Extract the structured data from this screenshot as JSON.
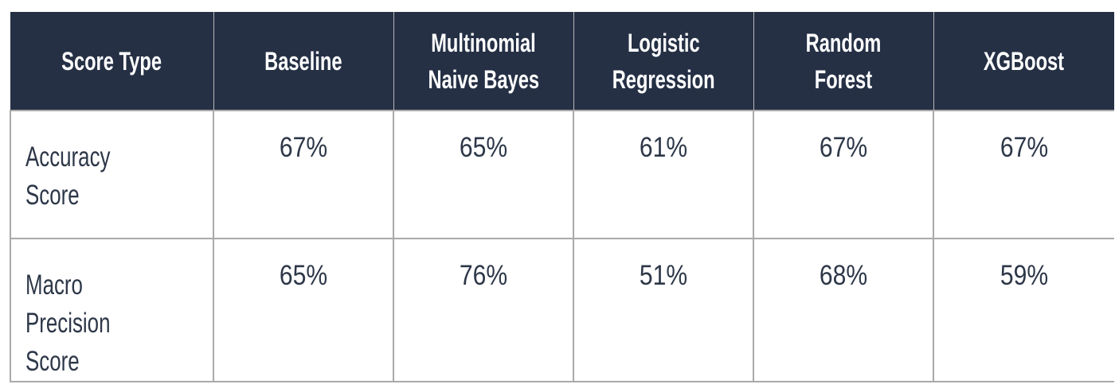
{
  "chart_data": {
    "type": "table",
    "columns": [
      "Score Type",
      "Baseline",
      "Multinomial Naive Bayes",
      "Logistic Regression",
      "Random Forest",
      "XGBoost"
    ],
    "header_lines": [
      [
        "Score Type"
      ],
      [
        "Baseline"
      ],
      [
        "Multinomial",
        "Naive Bayes"
      ],
      [
        "Logistic",
        "Regression"
      ],
      [
        "Random",
        "Forest"
      ],
      [
        "XGBoost"
      ]
    ],
    "rows": [
      {
        "label": "Accuracy Score",
        "label_lines": [
          "Accuracy",
          "Score"
        ],
        "values": [
          "67%",
          "65%",
          "61%",
          "67%",
          "67%"
        ]
      },
      {
        "label": "Macro Precision Score",
        "label_lines": [
          "Macro",
          "Precision",
          "Score"
        ],
        "values": [
          "65%",
          "76%",
          "51%",
          "68%",
          "59%"
        ]
      }
    ],
    "colors": {
      "header_background": "#253045",
      "header_text": "#ffffff",
      "cell_text": "#2d3748",
      "grid": "#a9a9a9"
    }
  }
}
